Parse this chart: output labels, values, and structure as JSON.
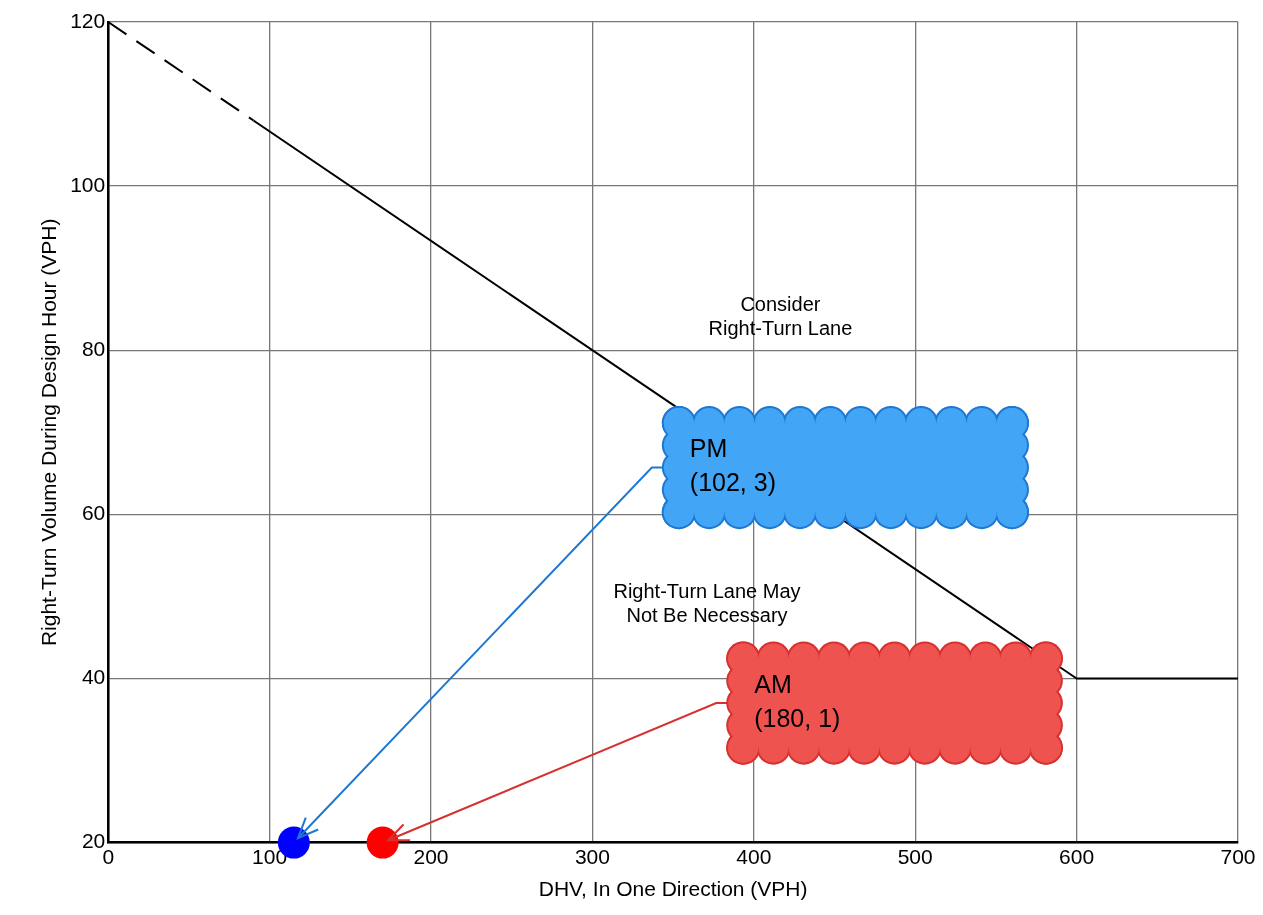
{
  "chart_data": {
    "type": "line",
    "xlabel": "DHV, In One Direction (VPH)",
    "ylabel": "Right-Turn Volume During Design Hour (VPH)",
    "xlim": [
      0,
      700
    ],
    "xticks": [
      0,
      100,
      200,
      300,
      400,
      500,
      600,
      700
    ],
    "ylim": [
      20,
      120
    ],
    "yticks": [
      20,
      40,
      60,
      80,
      100,
      120
    ],
    "grid": true,
    "legend": false,
    "series": [
      {
        "color": "#000000",
        "line_style": "dashed",
        "marker": "none",
        "x": [
          0,
          90
        ],
        "values": [
          120,
          108
        ]
      },
      {
        "color": "#000000",
        "line_style": "solid",
        "marker": "none",
        "x": [
          90,
          600,
          700
        ],
        "values": [
          108,
          40,
          40
        ]
      },
      {
        "type": "scatter",
        "color": "#0000ff",
        "marker": "circle",
        "x": [
          115
        ],
        "values": [
          20
        ]
      },
      {
        "type": "scatter",
        "color": "#ff0000",
        "marker": "circle",
        "x": [
          170
        ],
        "values": [
          20
        ]
      }
    ],
    "annotations": [
      "Consider\nRight-Turn Lane",
      "Right-Turn Lane May\nNot Be Necessary",
      {
        "text": "PM\n(102, 3)",
        "x": 115,
        "y": 20
      },
      {
        "text": "AM\n(180, 1)",
        "x": 170,
        "y": 20
      }
    ]
  }
}
